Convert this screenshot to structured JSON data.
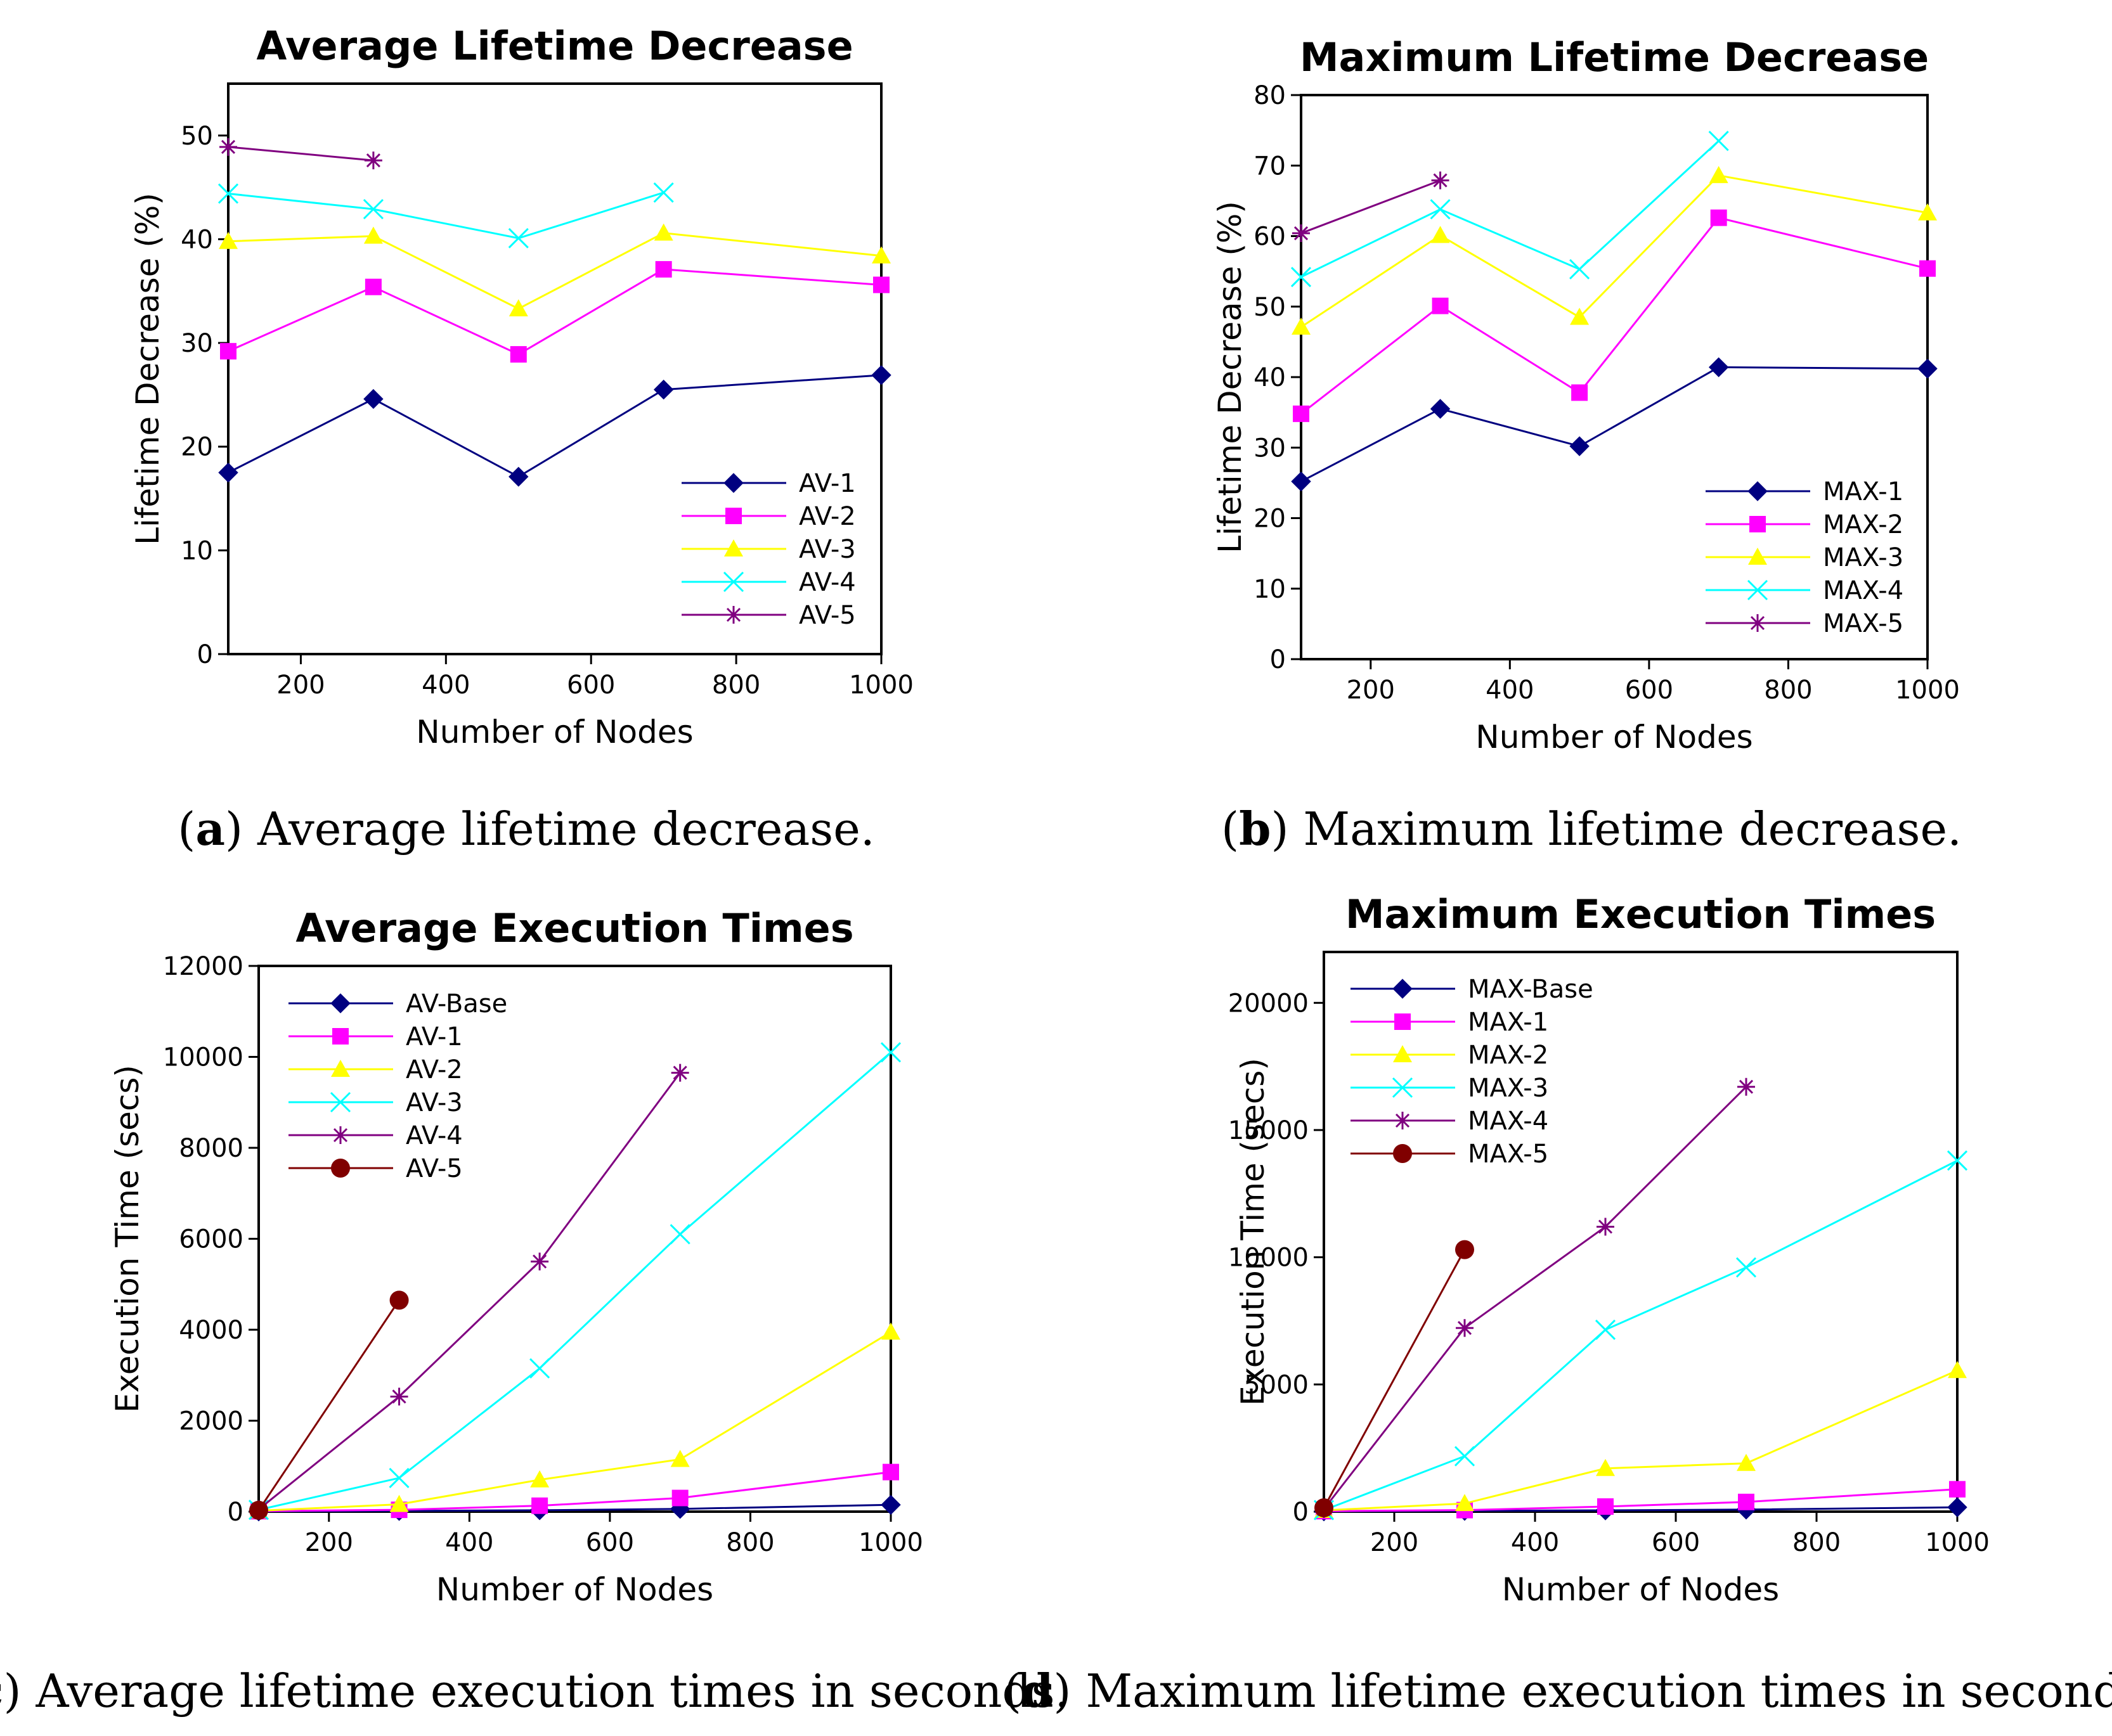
{
  "captions": [
    {
      "letter": "a",
      "text": "Average lifetime decrease."
    },
    {
      "letter": "b",
      "text": "Maximum lifetime decrease."
    },
    {
      "letter": "c",
      "text": "Average lifetime execution times in seconds."
    },
    {
      "letter": "d",
      "text": "Maximum lifetime execution times in seconds."
    }
  ],
  "colors": {
    "navy": "#000080",
    "magenta": "#ff00ff",
    "yellow": "#ffff00",
    "cyan": "#00ffff",
    "purple": "#800080",
    "maroon": "#800000"
  },
  "chart_data": [
    {
      "type": "line",
      "title": "Average Lifetime Decrease",
      "xlabel": "Number of Nodes",
      "ylabel": "Lifetime Decrease (%)",
      "xlim": [
        100,
        1000
      ],
      "ylim": [
        0,
        55
      ],
      "xticks": [
        200,
        400,
        600,
        800,
        1000
      ],
      "yticks": [
        0,
        10,
        20,
        30,
        40,
        50
      ],
      "grid": false,
      "legend_position": "lower-right",
      "series": [
        {
          "name": "AV-1",
          "color": "#000080",
          "marker": "diamond",
          "x": [
            100,
            300,
            500,
            700,
            1000
          ],
          "y": [
            17.5,
            24.6,
            17.1,
            25.5,
            26.9
          ]
        },
        {
          "name": "AV-2",
          "color": "#ff00ff",
          "marker": "square",
          "x": [
            100,
            300,
            500,
            700,
            1000
          ],
          "y": [
            29.2,
            35.4,
            28.9,
            37.1,
            35.6
          ]
        },
        {
          "name": "AV-3",
          "color": "#ffff00",
          "marker": "triangle",
          "x": [
            100,
            300,
            500,
            700,
            1000
          ],
          "y": [
            39.8,
            40.3,
            33.3,
            40.6,
            38.4
          ]
        },
        {
          "name": "AV-4",
          "color": "#00ffff",
          "marker": "x",
          "x": [
            100,
            300,
            500,
            700
          ],
          "y": [
            44.4,
            42.9,
            40.1,
            44.5
          ]
        },
        {
          "name": "AV-5",
          "color": "#800080",
          "marker": "star",
          "x": [
            100,
            300
          ],
          "y": [
            48.9,
            47.6
          ]
        }
      ]
    },
    {
      "type": "line",
      "title": "Maximum Lifetime Decrease",
      "xlabel": "Number of Nodes",
      "ylabel": "Lifetime Decrease (%)",
      "xlim": [
        100,
        1000
      ],
      "ylim": [
        0,
        80
      ],
      "xticks": [
        200,
        400,
        600,
        800,
        1000
      ],
      "yticks": [
        0,
        10,
        20,
        30,
        40,
        50,
        60,
        70,
        80
      ],
      "grid": false,
      "legend_position": "lower-right",
      "series": [
        {
          "name": "MAX-1",
          "color": "#000080",
          "marker": "diamond",
          "x": [
            100,
            300,
            500,
            700,
            1000
          ],
          "y": [
            25.2,
            35.5,
            30.2,
            41.4,
            41.2
          ]
        },
        {
          "name": "MAX-2",
          "color": "#ff00ff",
          "marker": "square",
          "x": [
            100,
            300,
            500,
            700,
            1000
          ],
          "y": [
            34.8,
            50.1,
            37.8,
            62.6,
            55.4
          ]
        },
        {
          "name": "MAX-3",
          "color": "#ffff00",
          "marker": "triangle",
          "x": [
            100,
            300,
            500,
            700,
            1000
          ],
          "y": [
            47.1,
            60.1,
            48.5,
            68.6,
            63.3
          ]
        },
        {
          "name": "MAX-4",
          "color": "#00ffff",
          "marker": "x",
          "x": [
            100,
            300,
            500,
            700
          ],
          "y": [
            54.2,
            63.8,
            55.3,
            73.5
          ]
        },
        {
          "name": "MAX-5",
          "color": "#800080",
          "marker": "star",
          "x": [
            100,
            300
          ],
          "y": [
            60.4,
            67.9
          ]
        }
      ]
    },
    {
      "type": "line",
      "title": "Average Execution Times",
      "xlabel": "Number of Nodes",
      "ylabel": "Execution Time (secs)",
      "xlim": [
        100,
        1000
      ],
      "ylim": [
        0,
        12000
      ],
      "xticks": [
        200,
        400,
        600,
        800,
        1000
      ],
      "yticks": [
        0,
        2000,
        4000,
        6000,
        8000,
        10000,
        12000
      ],
      "grid": false,
      "legend_position": "top-left",
      "series": [
        {
          "name": "AV-Base",
          "color": "#000080",
          "marker": "diamond",
          "x": [
            100,
            300,
            500,
            700,
            1000
          ],
          "y": [
            5,
            15,
            30,
            60,
            150
          ]
        },
        {
          "name": "AV-1",
          "color": "#ff00ff",
          "marker": "square",
          "x": [
            100,
            300,
            500,
            700,
            1000
          ],
          "y": [
            10,
            40,
            130,
            300,
            870
          ]
        },
        {
          "name": "AV-2",
          "color": "#ffff00",
          "marker": "triangle",
          "x": [
            100,
            300,
            500,
            700,
            1000
          ],
          "y": [
            20,
            160,
            700,
            1150,
            3950
          ]
        },
        {
          "name": "AV-3",
          "color": "#00ffff",
          "marker": "x",
          "x": [
            100,
            300,
            500,
            700,
            1000
          ],
          "y": [
            40,
            740,
            3150,
            6100,
            10100
          ]
        },
        {
          "name": "AV-4",
          "color": "#800080",
          "marker": "star",
          "x": [
            100,
            300,
            500,
            700
          ],
          "y": [
            50,
            2530,
            5500,
            9650
          ]
        },
        {
          "name": "AV-5",
          "color": "#800000",
          "marker": "circle",
          "x": [
            100,
            300
          ],
          "y": [
            30,
            4650
          ]
        }
      ]
    },
    {
      "type": "line",
      "title": "Maximum Execution Times",
      "xlabel": "Number of Nodes",
      "ylabel": "Execution Time (secs)",
      "xlim": [
        100,
        1000
      ],
      "ylim": [
        0,
        22000
      ],
      "xticks": [
        200,
        400,
        600,
        800,
        1000
      ],
      "yticks": [
        0,
        5000,
        10000,
        15000,
        20000
      ],
      "grid": false,
      "legend_position": "top-left",
      "series": [
        {
          "name": "MAX-Base",
          "color": "#000080",
          "marker": "diamond",
          "x": [
            100,
            300,
            500,
            700,
            1000
          ],
          "y": [
            10,
            30,
            50,
            80,
            170
          ]
        },
        {
          "name": "MAX-1",
          "color": "#ff00ff",
          "marker": "square",
          "x": [
            100,
            300,
            500,
            700,
            1000
          ],
          "y": [
            20,
            60,
            200,
            380,
            880
          ]
        },
        {
          "name": "MAX-2",
          "color": "#ffff00",
          "marker": "triangle",
          "x": [
            100,
            300,
            500,
            700,
            1000
          ],
          "y": [
            50,
            320,
            1700,
            1900,
            5550
          ]
        },
        {
          "name": "MAX-3",
          "color": "#00ffff",
          "marker": "x",
          "x": [
            100,
            300,
            500,
            700,
            1000
          ],
          "y": [
            60,
            2180,
            7150,
            9600,
            13800
          ]
        },
        {
          "name": "MAX-4",
          "color": "#800080",
          "marker": "star",
          "x": [
            100,
            300,
            500,
            700
          ],
          "y": [
            100,
            7220,
            11200,
            16700
          ]
        },
        {
          "name": "MAX-5",
          "color": "#800000",
          "marker": "circle",
          "x": [
            100,
            300
          ],
          "y": [
            150,
            10300
          ]
        }
      ]
    }
  ]
}
